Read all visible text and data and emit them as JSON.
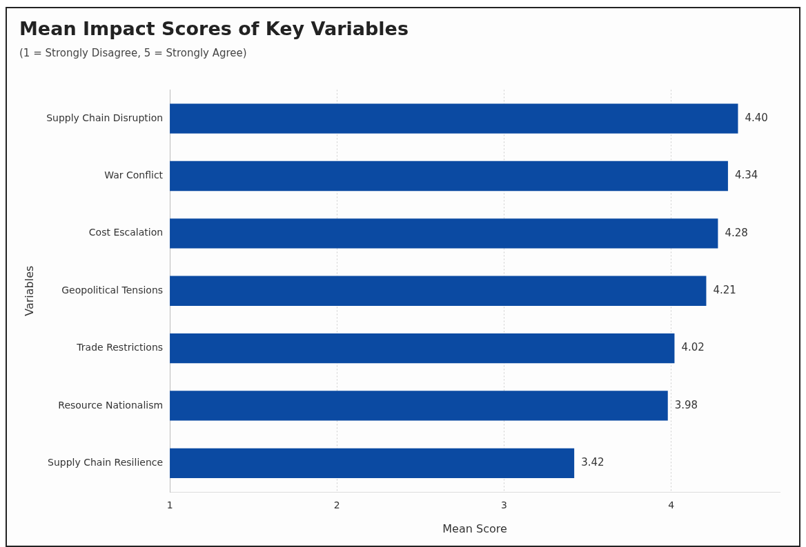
{
  "chart_data": {
    "type": "bar",
    "orientation": "horizontal",
    "title": "Mean Impact Scores of Key Variables",
    "subtitle": "(1 = Strongly Disagree, 5 = Strongly Agree)",
    "xlabel": "Mean Score",
    "ylabel": "Variables",
    "categories": [
      "Supply Chain Disruption",
      "War Conflict",
      "Cost Escalation",
      "Geopolitical Tensions",
      "Trade Restrictions",
      "Resource Nationalism",
      "Supply Chain Resilience"
    ],
    "values": [
      4.4,
      4.34,
      4.28,
      4.21,
      4.02,
      3.98,
      3.42
    ],
    "value_labels": [
      "4.40",
      "4.34",
      "4.28",
      "4.21",
      "4.02",
      "3.98",
      "3.42"
    ],
    "color": "#0b4aa2",
    "xlim": [
      1,
      4.65
    ],
    "xticks": [
      1,
      2,
      3,
      4
    ],
    "grid": "x",
    "line_style": "dotted",
    "legend": false
  }
}
